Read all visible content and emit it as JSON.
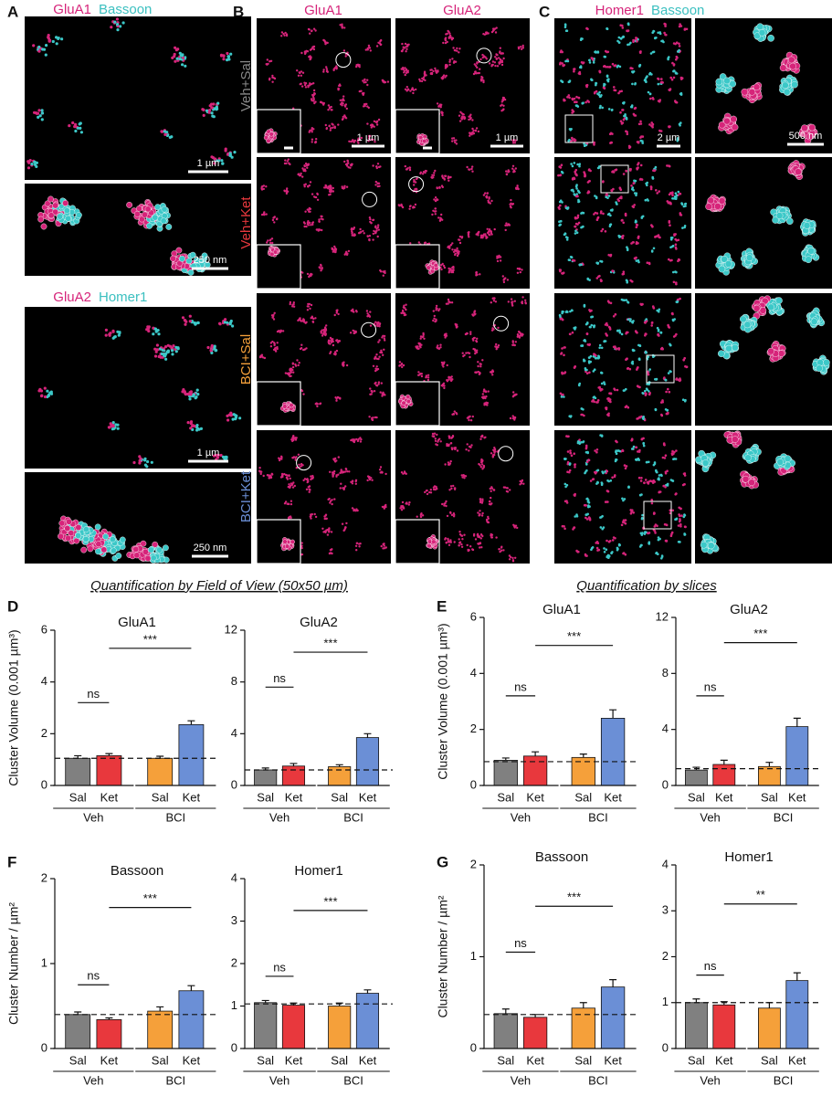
{
  "figure": {
    "panel_letters": [
      "A",
      "B",
      "C",
      "D",
      "E",
      "F",
      "G"
    ],
    "a": {
      "top_labels": [
        "GluA1",
        "Bassoon"
      ],
      "top_scales": [
        "1 µm",
        "250 nm"
      ],
      "bottom_labels": [
        "GluA2",
        "Homer1"
      ],
      "bottom_scales": [
        "1 µm",
        "250 nm"
      ]
    },
    "b": {
      "columns": [
        "GluA1",
        "GluA2"
      ],
      "rows": [
        "Veh+Sal",
        "Veh+Ket",
        "BCI+Sal",
        "BCI+Ket"
      ],
      "scales": [
        "1 µm",
        "1 µm"
      ]
    },
    "c": {
      "columns": [
        "Homer1",
        "Bassoon"
      ],
      "scales": [
        "2 µm",
        "500 nm"
      ]
    },
    "headings": [
      "Quantification by Field of View (50x50 µm)",
      "Quantification by slices"
    ]
  },
  "chart_data": [
    {
      "type": "bar",
      "title": "GluA1",
      "y_label": "Cluster Volume (0.001 µm³)",
      "categories": [
        "Sal",
        "Ket",
        "Sal",
        "Ket"
      ],
      "groups": [
        "Veh",
        "BCI"
      ],
      "values": [
        1.05,
        1.15,
        1.05,
        2.35
      ],
      "errors": [
        0.1,
        0.08,
        0.08,
        0.15
      ],
      "colors": [
        "#808080",
        "#e8383d",
        "#f5a03a",
        "#6b8fd6"
      ],
      "reference_line": 1.05,
      "ylim": [
        0,
        6
      ],
      "yticks": [
        0,
        2,
        4,
        6
      ],
      "annotations": [
        {
          "text": "ns",
          "span": [
            0,
            1
          ],
          "y": 3.2
        },
        {
          "text": "***",
          "span": [
            1,
            3
          ],
          "y": 5.3
        }
      ]
    },
    {
      "type": "bar",
      "title": "GluA2",
      "categories": [
        "Sal",
        "Ket",
        "Sal",
        "Ket"
      ],
      "groups": [
        "Veh",
        "BCI"
      ],
      "values": [
        1.2,
        1.5,
        1.45,
        3.7
      ],
      "errors": [
        0.15,
        0.2,
        0.15,
        0.3
      ],
      "colors": [
        "#808080",
        "#e8383d",
        "#f5a03a",
        "#6b8fd6"
      ],
      "reference_line": 1.2,
      "ylim": [
        0,
        12
      ],
      "yticks": [
        0,
        4,
        8,
        12
      ],
      "annotations": [
        {
          "text": "ns",
          "span": [
            0,
            1
          ],
          "y": 7.6
        },
        {
          "text": "***",
          "span": [
            1,
            3
          ],
          "y": 10.3
        }
      ]
    },
    {
      "type": "bar",
      "title": "GluA1",
      "y_label": "Cluster Volume (0.001 µm³)",
      "categories": [
        "Sal",
        "Ket",
        "Sal",
        "Ket"
      ],
      "groups": [
        "Veh",
        "BCI"
      ],
      "values": [
        0.9,
        1.05,
        1.0,
        2.4
      ],
      "errors": [
        0.08,
        0.15,
        0.12,
        0.3
      ],
      "colors": [
        "#808080",
        "#e8383d",
        "#f5a03a",
        "#6b8fd6"
      ],
      "reference_line": 0.85,
      "ylim": [
        0,
        6
      ],
      "yticks": [
        0,
        2,
        4,
        6
      ],
      "annotations": [
        {
          "text": "ns",
          "span": [
            0,
            1
          ],
          "y": 3.2
        },
        {
          "text": "***",
          "span": [
            1,
            3
          ],
          "y": 5.0
        }
      ]
    },
    {
      "type": "bar",
      "title": "GluA2",
      "categories": [
        "Sal",
        "Ket",
        "Sal",
        "Ket"
      ],
      "groups": [
        "Veh",
        "BCI"
      ],
      "values": [
        1.1,
        1.5,
        1.35,
        4.2
      ],
      "errors": [
        0.2,
        0.3,
        0.3,
        0.6
      ],
      "colors": [
        "#808080",
        "#e8383d",
        "#f5a03a",
        "#6b8fd6"
      ],
      "reference_line": 1.2,
      "ylim": [
        0,
        12
      ],
      "yticks": [
        0,
        4,
        8,
        12
      ],
      "annotations": [
        {
          "text": "ns",
          "span": [
            0,
            1
          ],
          "y": 6.4
        },
        {
          "text": "***",
          "span": [
            1,
            3
          ],
          "y": 10.2
        }
      ]
    },
    {
      "type": "bar",
      "title": "Bassoon",
      "y_label": "Cluster Number / µm²",
      "categories": [
        "Sal",
        "Ket",
        "Sal",
        "Ket"
      ],
      "groups": [
        "Veh",
        "BCI"
      ],
      "values": [
        0.4,
        0.34,
        0.44,
        0.68
      ],
      "errors": [
        0.03,
        0.02,
        0.05,
        0.06
      ],
      "colors": [
        "#808080",
        "#e8383d",
        "#f5a03a",
        "#6b8fd6"
      ],
      "reference_line": 0.4,
      "ylim": [
        0,
        2
      ],
      "yticks": [
        0,
        1,
        2
      ],
      "annotations": [
        {
          "text": "ns",
          "span": [
            0,
            1
          ],
          "y": 0.75
        },
        {
          "text": "***",
          "span": [
            1,
            3
          ],
          "y": 1.66
        }
      ]
    },
    {
      "type": "bar",
      "title": "Homer1",
      "categories": [
        "Sal",
        "Ket",
        "Sal",
        "Ket"
      ],
      "groups": [
        "Veh",
        "BCI"
      ],
      "values": [
        1.08,
        1.02,
        1.0,
        1.3
      ],
      "errors": [
        0.05,
        0.05,
        0.07,
        0.08
      ],
      "colors": [
        "#808080",
        "#e8383d",
        "#f5a03a",
        "#6b8fd6"
      ],
      "reference_line": 1.05,
      "ylim": [
        0,
        4
      ],
      "yticks": [
        0,
        1,
        2,
        3,
        4
      ],
      "annotations": [
        {
          "text": "ns",
          "span": [
            0,
            1
          ],
          "y": 1.7
        },
        {
          "text": "***",
          "span": [
            1,
            3
          ],
          "y": 3.25
        }
      ]
    },
    {
      "type": "bar",
      "title": "Bassoon",
      "y_label": "Cluster Number / µm²",
      "categories": [
        "Sal",
        "Ket",
        "Sal",
        "Ket"
      ],
      "groups": [
        "Veh",
        "BCI"
      ],
      "values": [
        0.38,
        0.34,
        0.44,
        0.67
      ],
      "errors": [
        0.05,
        0.03,
        0.06,
        0.08
      ],
      "colors": [
        "#808080",
        "#e8383d",
        "#f5a03a",
        "#6b8fd6"
      ],
      "reference_line": 0.37,
      "ylim": [
        0,
        2
      ],
      "yticks": [
        0,
        1,
        2
      ],
      "annotations": [
        {
          "text": "ns",
          "span": [
            0,
            1
          ],
          "y": 1.05
        },
        {
          "text": "***",
          "span": [
            1,
            3
          ],
          "y": 1.55
        }
      ]
    },
    {
      "type": "bar",
      "title": "Homer1",
      "categories": [
        "Sal",
        "Ket",
        "Sal",
        "Ket"
      ],
      "groups": [
        "Veh",
        "BCI"
      ],
      "values": [
        1.0,
        0.95,
        0.88,
        1.48
      ],
      "errors": [
        0.08,
        0.07,
        0.12,
        0.17
      ],
      "colors": [
        "#808080",
        "#e8383d",
        "#f5a03a",
        "#6b8fd6"
      ],
      "reference_line": 1.0,
      "ylim": [
        0,
        4
      ],
      "yticks": [
        0,
        1,
        2,
        3,
        4
      ],
      "annotations": [
        {
          "text": "ns",
          "span": [
            0,
            1
          ],
          "y": 1.6
        },
        {
          "text": "**",
          "span": [
            1,
            3
          ],
          "y": 3.15
        }
      ]
    }
  ]
}
